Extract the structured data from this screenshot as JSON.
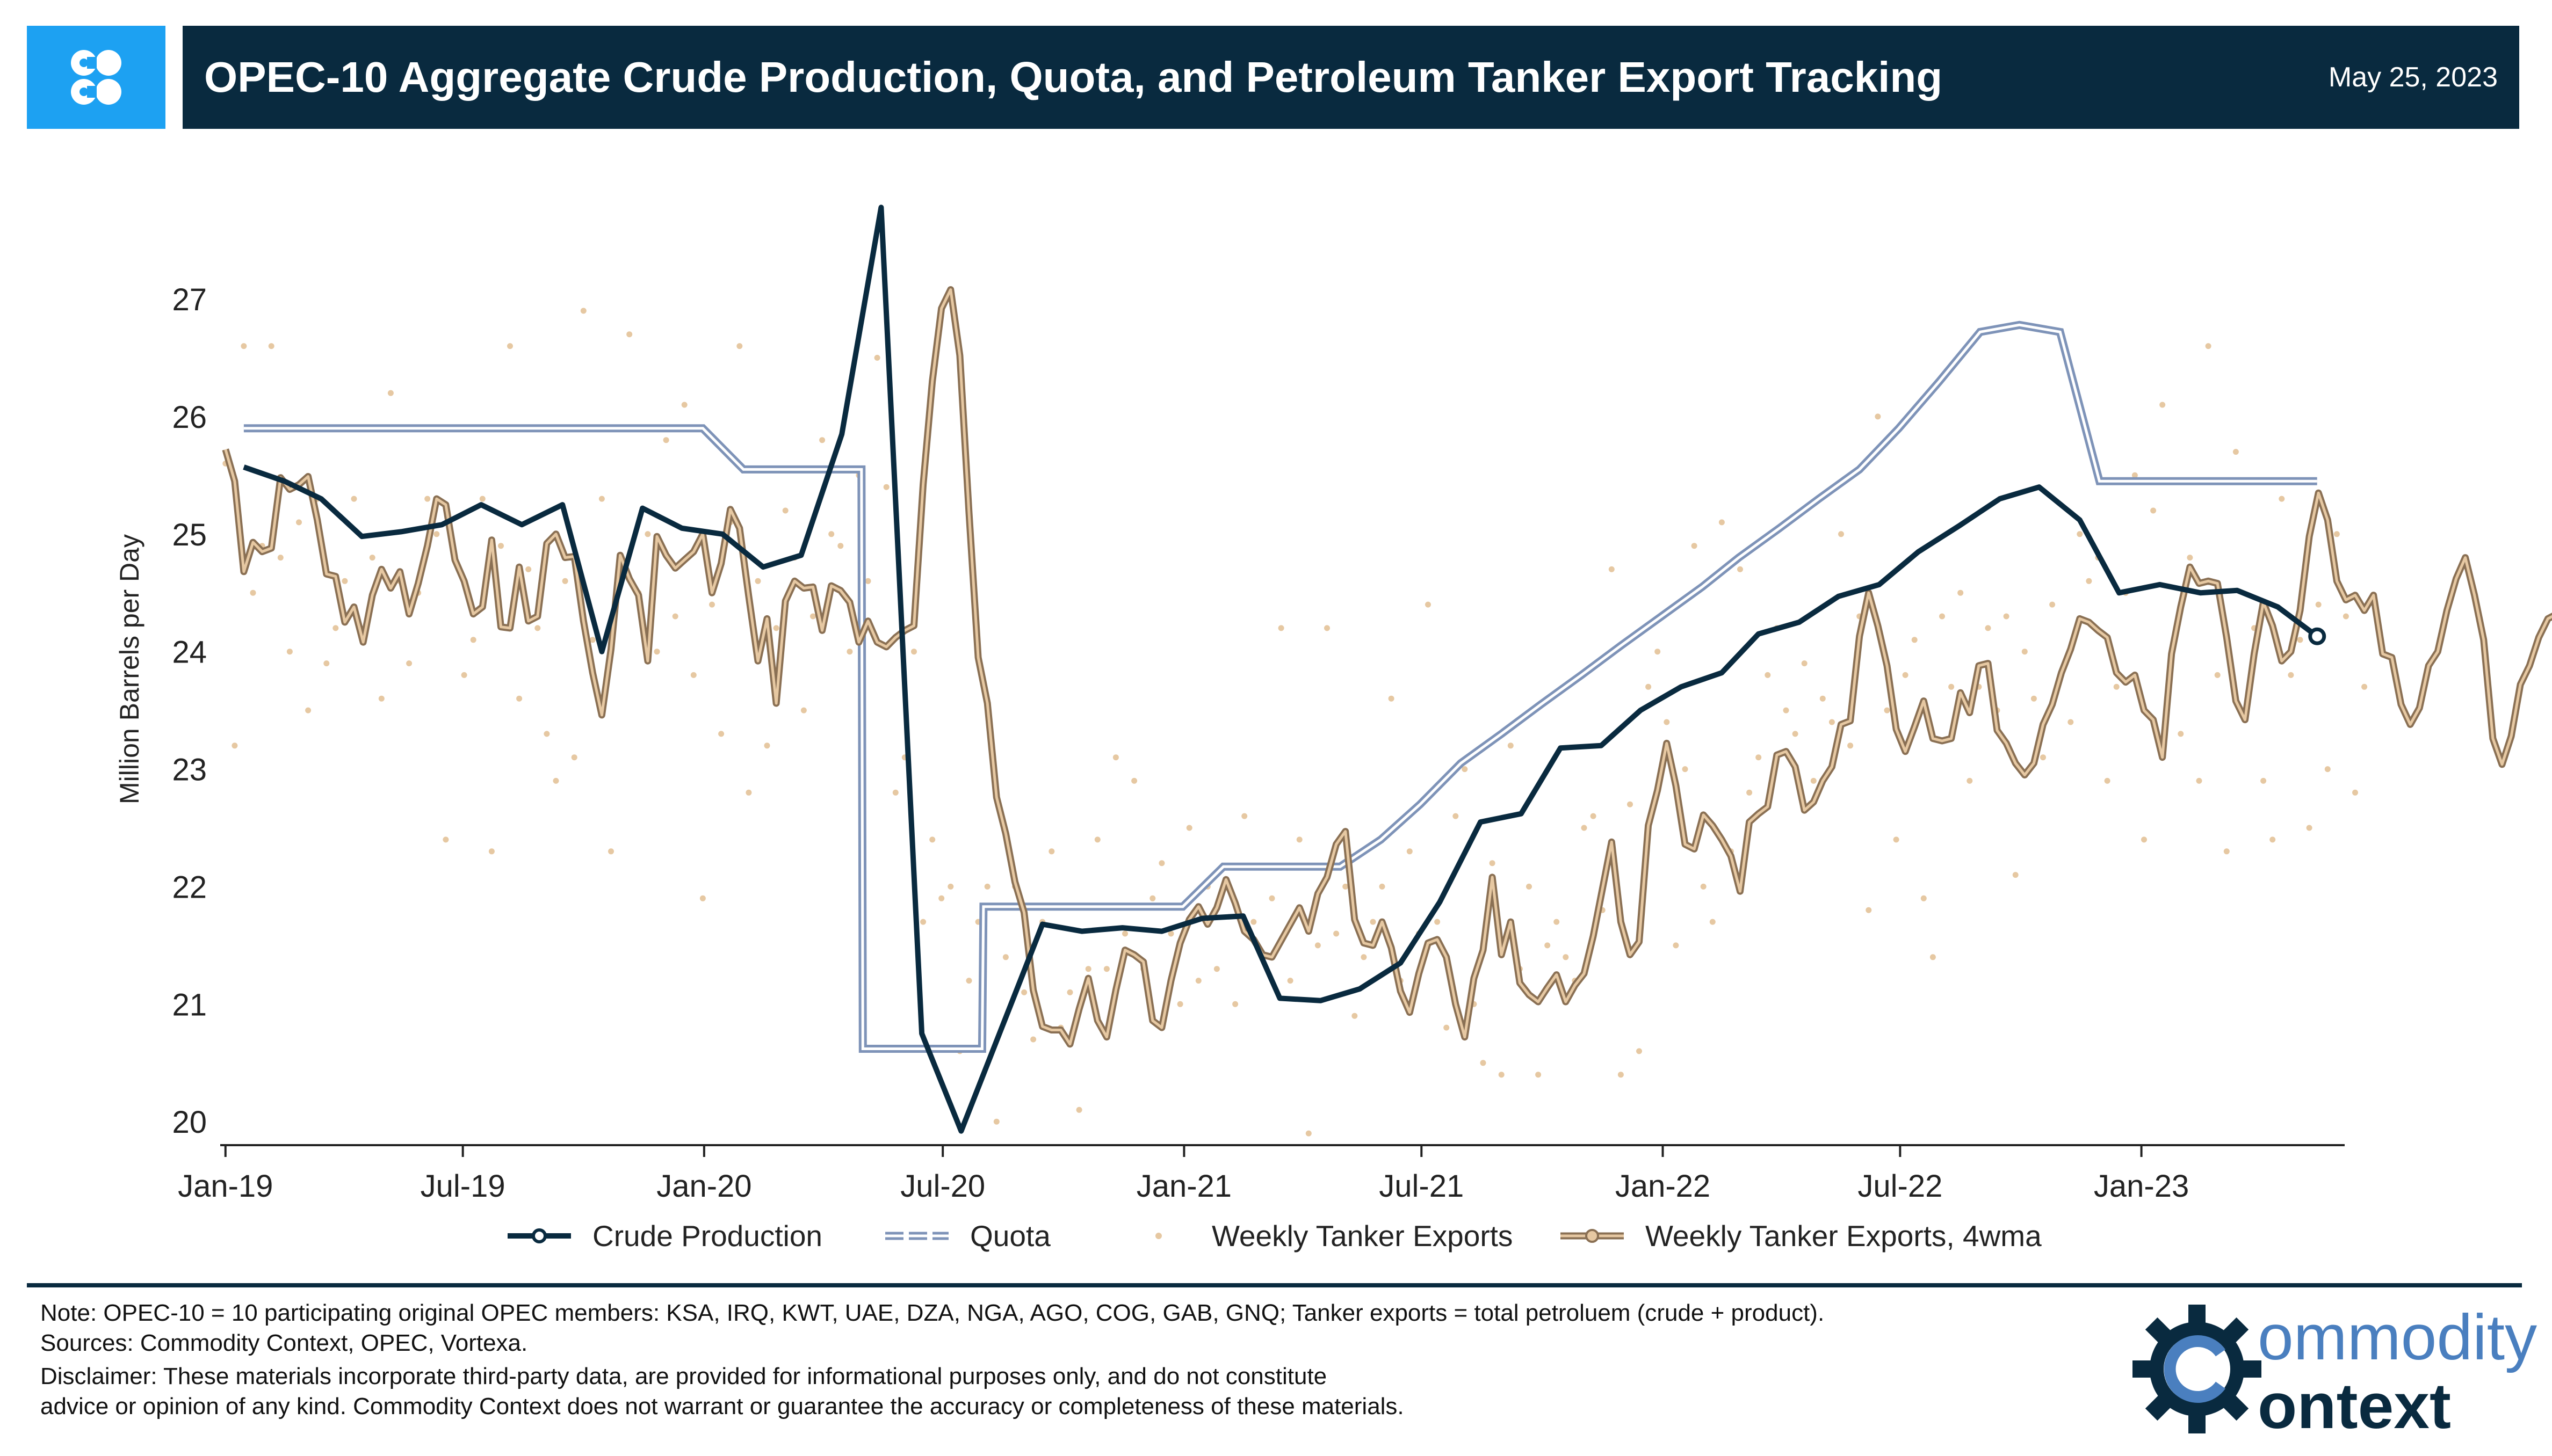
{
  "header": {
    "title": "OPEC-10 Aggregate Crude Production, Quota, and Petroleum Tanker Export Tracking",
    "date": "May 25, 2023"
  },
  "colors": {
    "navy": "#092a3f",
    "logo_blue": "#1da1f2",
    "quota": "#7e93b8",
    "tanker": "#c2a37c",
    "tanker_dot": "#e6c8a2"
  },
  "footer": {
    "note": "Note: OPEC-10 = 10 participating original OPEC members: KSA, IRQ, KWT, UAE, DZA, NGA, AGO, COG, GAB, GNQ; Tanker exports = total petroluem (crude + product).",
    "sources": "Sources: Commodity Context, OPEC, Vortexa.",
    "disclaimer_1": "Disclaimer: These materials incorporate third-party data, are provided for informational purposes only, and do not constitute",
    "disclaimer_2": "advice or opinion of any kind. Commodity Context does not warrant or guarantee the accuracy or completeness of these materials."
  },
  "brand": {
    "logo_text_top": "ommodity",
    "logo_text_bottom": "ontext"
  },
  "chart_data": {
    "type": "line",
    "ylabel": "Million Barrels per Day",
    "xlabel": "",
    "ylim": [
      19.8,
      27.9
    ],
    "yticks": [
      20,
      21,
      22,
      23,
      24,
      25,
      26,
      27
    ],
    "xlim": [
      "2018-12-28",
      "2023-06-05"
    ],
    "xticks": [
      {
        "date": "2019-01-01",
        "label": "Jan-19"
      },
      {
        "date": "2019-07-01",
        "label": "Jul-19"
      },
      {
        "date": "2020-01-01",
        "label": "Jan-20"
      },
      {
        "date": "2020-07-01",
        "label": "Jul-20"
      },
      {
        "date": "2021-01-01",
        "label": "Jan-21"
      },
      {
        "date": "2021-07-01",
        "label": "Jul-21"
      },
      {
        "date": "2022-01-01",
        "label": "Jan-22"
      },
      {
        "date": "2022-07-01",
        "label": "Jul-22"
      },
      {
        "date": "2023-01-01",
        "label": "Jan-23"
      }
    ],
    "legend": [
      "Crude Production",
      "Quota",
      "Weekly Tanker Exports",
      "Weekly Tanker Exports, 4wma"
    ],
    "legend_position": "bottom",
    "grid": false,
    "series": [
      {
        "name": "Crude Production",
        "style": "line-endmarker",
        "points": [
          [
            "2019-01-15",
            25.57
          ],
          [
            "2019-02-15",
            25.45
          ],
          [
            "2019-03-15",
            25.3
          ],
          [
            "2019-04-15",
            24.98
          ],
          [
            "2019-05-15",
            25.02
          ],
          [
            "2019-06-15",
            25.08
          ],
          [
            "2019-07-15",
            25.25
          ],
          [
            "2019-08-15",
            25.08
          ],
          [
            "2019-09-15",
            25.25
          ],
          [
            "2019-10-15",
            24.0
          ],
          [
            "2019-11-15",
            25.22
          ],
          [
            "2019-12-15",
            25.05
          ],
          [
            "2020-01-15",
            25.0
          ],
          [
            "2020-02-15",
            24.72
          ],
          [
            "2020-03-15",
            24.82
          ],
          [
            "2020-04-15",
            25.85
          ],
          [
            "2020-05-15",
            27.78
          ],
          [
            "2020-06-15",
            20.75
          ],
          [
            "2020-07-15",
            19.92
          ],
          [
            "2020-08-15",
            20.8
          ],
          [
            "2020-09-15",
            21.68
          ],
          [
            "2020-10-15",
            21.62
          ],
          [
            "2020-11-15",
            21.65
          ],
          [
            "2020-12-15",
            21.62
          ],
          [
            "2021-01-15",
            21.73
          ],
          [
            "2021-02-15",
            21.75
          ],
          [
            "2021-03-15",
            21.05
          ],
          [
            "2021-04-15",
            21.03
          ],
          [
            "2021-05-15",
            21.13
          ],
          [
            "2021-06-15",
            21.35
          ],
          [
            "2021-07-15",
            21.87
          ],
          [
            "2021-08-15",
            22.55
          ],
          [
            "2021-09-15",
            22.62
          ],
          [
            "2021-10-15",
            23.18
          ],
          [
            "2021-11-15",
            23.2
          ],
          [
            "2021-12-15",
            23.5
          ],
          [
            "2022-01-15",
            23.7
          ],
          [
            "2022-02-15",
            23.82
          ],
          [
            "2022-03-15",
            24.15
          ],
          [
            "2022-04-15",
            24.25
          ],
          [
            "2022-05-15",
            24.47
          ],
          [
            "2022-06-15",
            24.57
          ],
          [
            "2022-07-15",
            24.85
          ],
          [
            "2022-08-15",
            25.07
          ],
          [
            "2022-09-15",
            25.3
          ],
          [
            "2022-10-15",
            25.4
          ],
          [
            "2022-11-15",
            25.12
          ],
          [
            "2022-12-15",
            24.5
          ],
          [
            "2023-01-15",
            24.57
          ],
          [
            "2023-02-15",
            24.5
          ],
          [
            "2023-03-15",
            24.52
          ],
          [
            "2023-04-15",
            24.38
          ],
          [
            "2023-05-15",
            24.13
          ]
        ]
      },
      {
        "name": "Quota",
        "style": "double-line",
        "points": [
          [
            "2019-01-15",
            25.9
          ],
          [
            "2019-12-31",
            25.9
          ],
          [
            "2020-01-31",
            25.55
          ],
          [
            "2020-04-30",
            25.55
          ],
          [
            "2020-05-01",
            20.62
          ],
          [
            "2020-07-31",
            20.62
          ],
          [
            "2020-08-01",
            21.83
          ],
          [
            "2020-12-31",
            21.83
          ],
          [
            "2021-01-31",
            22.17
          ],
          [
            "2021-04-30",
            22.17
          ],
          [
            "2021-05-31",
            22.4
          ],
          [
            "2021-06-30",
            22.7
          ],
          [
            "2021-07-31",
            23.05
          ],
          [
            "2021-08-31",
            23.3
          ],
          [
            "2021-09-30",
            23.55
          ],
          [
            "2021-10-31",
            23.8
          ],
          [
            "2021-11-30",
            24.05
          ],
          [
            "2021-12-31",
            24.3
          ],
          [
            "2022-01-31",
            24.55
          ],
          [
            "2022-02-28",
            24.8
          ],
          [
            "2022-03-31",
            25.05
          ],
          [
            "2022-04-30",
            25.3
          ],
          [
            "2022-05-31",
            25.55
          ],
          [
            "2022-06-30",
            25.9
          ],
          [
            "2022-07-31",
            26.3
          ],
          [
            "2022-08-31",
            26.72
          ],
          [
            "2022-09-30",
            26.78
          ],
          [
            "2022-10-31",
            26.72
          ],
          [
            "2022-11-30",
            25.45
          ],
          [
            "2023-05-15",
            25.45
          ]
        ]
      },
      {
        "name": "Weekly Tanker Exports",
        "style": "dots",
        "x_start": "2019-01-01",
        "step_days": 7,
        "values": [
          25.6,
          23.2,
          26.6,
          24.5,
          24.9,
          26.6,
          24.8,
          24.0,
          25.1,
          23.5,
          25.3,
          23.9,
          24.2,
          24.6,
          25.3,
          24.1,
          24.8,
          23.6,
          26.2,
          24.6,
          23.9,
          24.5,
          25.3,
          25.0,
          22.4,
          24.8,
          23.8,
          24.1,
          25.3,
          22.3,
          24.9,
          26.6,
          23.6,
          24.7,
          24.2,
          23.3,
          22.9,
          24.6,
          23.1,
          26.9,
          24.1,
          25.3,
          22.3,
          24.8,
          26.7,
          24.5,
          25.0,
          24.0,
          25.8,
          24.3,
          26.1,
          23.8,
          21.9,
          24.4,
          23.3,
          25.1,
          26.6,
          22.8,
          24.6,
          23.2,
          24.2,
          25.2,
          24.8,
          23.5,
          24.3,
          25.8,
          25.0,
          24.9,
          24.0,
          25.5,
          24.6,
          26.5,
          25.4,
          22.8,
          23.1,
          24.0,
          21.7,
          22.4,
          21.9,
          22.0,
          20.6,
          21.2,
          21.7,
          22.0,
          20.0,
          21.4,
          22.0,
          21.1,
          20.7,
          21.7,
          22.3,
          20.8,
          21.1,
          20.1,
          21.3,
          22.4,
          21.3,
          23.1,
          21.6,
          22.9,
          21.3,
          21.9,
          22.2,
          21.6,
          21.0,
          22.5,
          21.2,
          22.0,
          21.3,
          22.0,
          21.0,
          22.6,
          21.7,
          21.4,
          21.9,
          24.2,
          21.2,
          22.4,
          19.9,
          21.5,
          24.2,
          21.6,
          22.0,
          20.9,
          21.4,
          21.7,
          22.0,
          23.6,
          21.2,
          22.3,
          21.6,
          24.4,
          21.7,
          20.8,
          22.6,
          23.0,
          21.0,
          20.5,
          22.2,
          20.4,
          23.2,
          21.3,
          22.0,
          20.4,
          21.5,
          21.7,
          21.4,
          21.2,
          22.5,
          22.6,
          21.8,
          24.7,
          20.4,
          22.7,
          20.6,
          23.7,
          24.0,
          23.4,
          21.5,
          23.0,
          24.9,
          22.0,
          21.7,
          25.1,
          22.3,
          24.7,
          22.8,
          23.1,
          23.8,
          24.2,
          23.5,
          23.3,
          23.9,
          22.9,
          23.6,
          23.4,
          25.0,
          23.2,
          24.3,
          21.8,
          26.0,
          23.5,
          22.4,
          23.8,
          24.1,
          21.9,
          21.4,
          24.3,
          23.7,
          24.5,
          22.9,
          23.7,
          24.2,
          23.5,
          24.3,
          22.1,
          24.0,
          23.6,
          23.1,
          24.4,
          23.8,
          23.4,
          25.0,
          24.6,
          24.8,
          22.9,
          23.7,
          24.5,
          25.5,
          22.4,
          25.2,
          26.1,
          24.0,
          23.3,
          24.8,
          22.9,
          26.6,
          23.8,
          22.3,
          25.7,
          23.5,
          24.2,
          22.9,
          22.4,
          25.3,
          23.8,
          24.1,
          22.5,
          24.4,
          23.0,
          25.0,
          24.3,
          22.8,
          23.7
        ]
      },
      {
        "name": "Weekly Tanker Exports, 4wma",
        "style": "double-line-endmarker",
        "x_start": "2019-01-01",
        "step_days": 7,
        "values": [
          25.72,
          25.45,
          24.68,
          24.93,
          24.85,
          24.88,
          25.48,
          25.38,
          25.42,
          25.49,
          25.12,
          24.66,
          24.64,
          24.25,
          24.38,
          24.08,
          24.48,
          24.7,
          24.54,
          24.68,
          24.32,
          24.58,
          24.9,
          25.3,
          25.25,
          24.78,
          24.6,
          24.32,
          24.38,
          24.95,
          24.21,
          24.2,
          24.72,
          24.26,
          24.3,
          24.92,
          25.0,
          24.8,
          24.81,
          24.26,
          23.82,
          23.46,
          24.02,
          24.82,
          24.62,
          24.48,
          23.92,
          24.98,
          24.82,
          24.71,
          24.78,
          24.85,
          25.0,
          24.5,
          24.75,
          25.21,
          25.05,
          24.47,
          23.92,
          24.28,
          23.56,
          24.43,
          24.6,
          24.54,
          24.55,
          24.18,
          24.56,
          24.52,
          24.42,
          24.08,
          24.26,
          24.08,
          24.04,
          24.12,
          24.18,
          24.22,
          25.42,
          26.3,
          26.92,
          27.08,
          26.52,
          25.18,
          23.95,
          23.56,
          22.76,
          22.45,
          22.04,
          21.78,
          21.12,
          20.81,
          20.78,
          20.78,
          20.66,
          20.96,
          21.22,
          20.86,
          20.72,
          21.12,
          21.46,
          21.42,
          21.36,
          20.86,
          20.8,
          21.2,
          21.52,
          21.72,
          21.83,
          21.68,
          21.82,
          22.06,
          21.86,
          21.62,
          21.55,
          21.42,
          21.4,
          21.54,
          21.68,
          21.82,
          21.62,
          21.94,
          22.08,
          22.36,
          22.47,
          21.72,
          21.52,
          21.5,
          21.7,
          21.48,
          21.11,
          20.93,
          21.26,
          21.52,
          21.55,
          21.4,
          21.0,
          20.72,
          21.22,
          21.46,
          22.08,
          21.42,
          21.7,
          21.18,
          21.08,
          21.02,
          21.14,
          21.25,
          21.02,
          21.16,
          21.26,
          21.58,
          21.98,
          22.38,
          21.7,
          21.42,
          21.53,
          22.52,
          22.82,
          23.22,
          22.86,
          22.36,
          22.32,
          22.61,
          22.52,
          22.4,
          22.26,
          21.96,
          22.55,
          22.62,
          22.68,
          23.12,
          23.15,
          23.02,
          22.65,
          22.72,
          22.9,
          23.02,
          23.38,
          23.41,
          24.13,
          24.5,
          24.22,
          23.88,
          23.34,
          23.15,
          23.36,
          23.58,
          23.26,
          23.24,
          23.26,
          23.65,
          23.48,
          23.88,
          23.9,
          23.33,
          23.22,
          23.05,
          22.95,
          23.05,
          23.38,
          23.55,
          23.82,
          24.02,
          24.28,
          24.25,
          24.18,
          24.12,
          23.82,
          23.74,
          23.8,
          23.5,
          23.42,
          23.1,
          23.98,
          24.38,
          24.72,
          24.58,
          24.6,
          24.58,
          24.12,
          23.58,
          23.42,
          23.98,
          24.42,
          24.22,
          23.92,
          24.0,
          24.35,
          24.98,
          25.35,
          25.12,
          24.6,
          24.44,
          24.48,
          24.35,
          24.48,
          23.98,
          23.95,
          23.55,
          23.38,
          23.52,
          23.88,
          24.0,
          24.35,
          24.62,
          24.8,
          24.48,
          24.1,
          23.26,
          23.04,
          23.28,
          23.72,
          23.88,
          24.12,
          24.28,
          24.32,
          23.95,
          24.02,
          23.82,
          23.58,
          24.12,
          24.38,
          24.48,
          24.32,
          23.75,
          23.3
        ]
      }
    ]
  }
}
